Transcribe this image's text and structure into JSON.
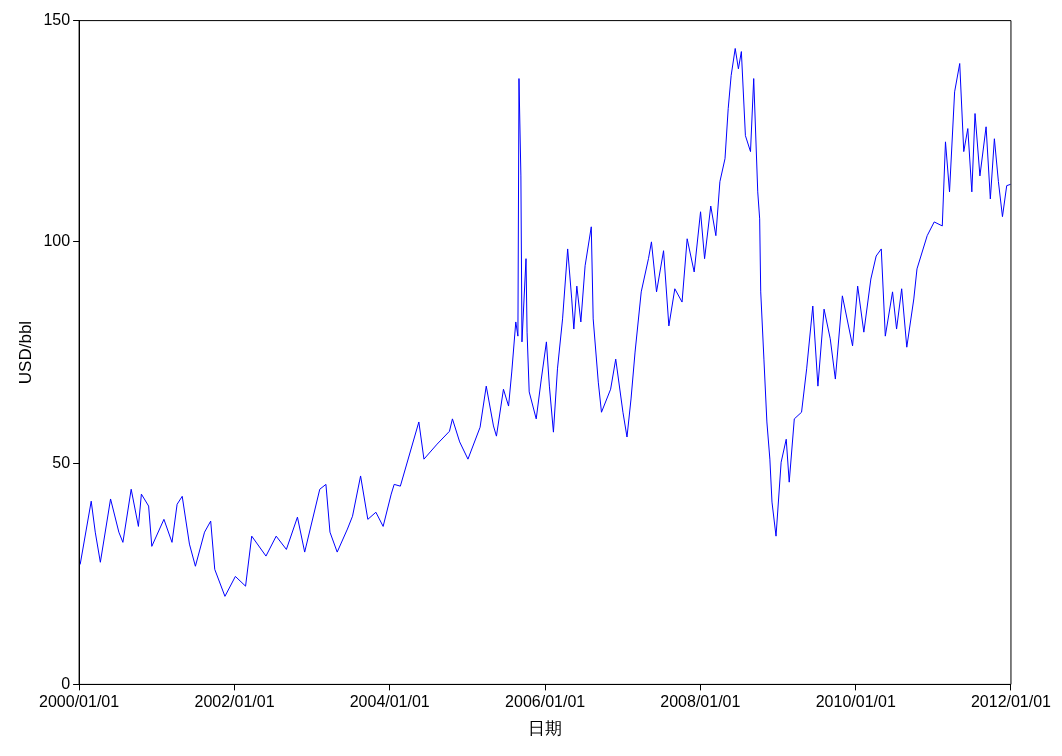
{
  "chart_data": {
    "type": "line",
    "xlabel": "日期",
    "ylabel": "USD/bbl",
    "xlim": [
      "2000-01-01",
      "2012-01-01"
    ],
    "xticks": [
      {
        "value": "2000-01-01",
        "label": "2000/01/01"
      },
      {
        "value": "2002-01-01",
        "label": "2002/01/01"
      },
      {
        "value": "2004-01-01",
        "label": "2004/01/01"
      },
      {
        "value": "2006-01-01",
        "label": "2006/01/01"
      },
      {
        "value": "2008-01-01",
        "label": "2008/01/01"
      },
      {
        "value": "2010-01-01",
        "label": "2010/01/01"
      },
      {
        "value": "2012-01-01",
        "label": "2012/01/01"
      }
    ],
    "ylim": [
      0,
      150
    ],
    "yticks": [
      0,
      50,
      100,
      150
    ],
    "grid": false,
    "legend": false,
    "marker": "none",
    "line_style": "solid",
    "x": [
      "2000-01-06",
      "2000-02-27",
      "2000-03-17",
      "2000-04-10",
      "2000-05-28",
      "2000-07-06",
      "2000-07-25",
      "2000-09-02",
      "2000-10-06",
      "2000-10-20",
      "2000-11-23",
      "2000-12-08",
      "2001-02-03",
      "2001-03-13",
      "2001-04-06",
      "2001-04-30",
      "2001-06-03",
      "2001-07-01",
      "2001-08-13",
      "2001-09-11",
      "2001-09-30",
      "2001-11-17",
      "2002-01-05",
      "2002-02-22",
      "2002-03-23",
      "2002-05-29",
      "2002-07-16",
      "2002-09-02",
      "2002-10-24",
      "2002-11-27",
      "2003-02-06",
      "2003-03-07",
      "2003-03-26",
      "2003-04-29",
      "2003-06-16",
      "2003-07-10",
      "2003-08-17",
      "2003-09-20",
      "2003-10-28",
      "2003-12-01",
      "2004-01-08",
      "2004-01-22",
      "2004-02-20",
      "2004-05-17",
      "2004-06-10",
      "2004-08-11",
      "2004-10-08",
      "2004-10-22",
      "2004-11-25",
      "2005-01-03",
      "2005-03-01",
      "2005-03-30",
      "2005-05-03",
      "2005-05-17",
      "2005-06-19",
      "2005-07-13",
      "2005-07-28",
      "2005-08-16",
      "2005-08-26",
      "2005-08-31",
      "2005-09-09",
      "2005-09-14",
      "2005-10-03",
      "2005-10-08",
      "2005-10-18",
      "2005-11-20",
      "2005-12-14",
      "2006-01-07",
      "2006-01-21",
      "2006-02-09",
      "2006-02-28",
      "2006-03-24",
      "2006-04-17",
      "2006-05-06",
      "2006-05-16",
      "2006-05-30",
      "2006-06-18",
      "2006-07-08",
      "2006-08-06",
      "2006-08-15",
      "2006-09-08",
      "2006-09-23",
      "2006-11-05",
      "2006-11-29",
      "2007-01-02",
      "2007-01-21",
      "2007-02-09",
      "2007-02-28",
      "2007-03-29",
      "2007-05-02",
      "2007-05-16",
      "2007-06-09",
      "2007-07-12",
      "2007-08-06",
      "2007-09-03",
      "2007-10-07",
      "2007-10-31",
      "2007-12-03",
      "2008-01-02",
      "2008-01-21",
      "2008-02-19",
      "2008-03-14",
      "2008-04-02",
      "2008-04-26",
      "2008-05-11",
      "2008-05-25",
      "2008-06-13",
      "2008-06-28",
      "2008-07-12",
      "2008-07-31",
      "2008-08-24",
      "2008-09-08",
      "2008-09-27",
      "2008-10-06",
      "2008-10-11",
      "2008-10-26",
      "2008-11-09",
      "2008-11-23",
      "2008-12-03",
      "2008-12-22",
      "2009-01-15",
      "2009-02-08",
      "2009-02-22",
      "2009-03-18",
      "2009-04-21",
      "2009-05-15",
      "2009-06-13",
      "2009-07-07",
      "2009-08-05",
      "2009-09-03",
      "2009-09-27",
      "2009-10-30",
      "2009-12-17",
      "2010-01-10",
      "2010-02-08",
      "2010-03-13",
      "2010-04-07",
      "2010-05-01",
      "2010-05-20",
      "2010-06-23",
      "2010-07-12",
      "2010-08-05",
      "2010-08-29",
      "2010-10-01",
      "2010-10-16",
      "2010-12-03",
      "2011-01-05",
      "2011-02-12",
      "2011-02-27",
      "2011-03-18",
      "2011-04-11",
      "2011-05-05",
      "2011-05-24",
      "2011-06-12",
      "2011-07-01",
      "2011-07-16",
      "2011-08-08",
      "2011-09-06",
      "2011-09-26",
      "2011-10-15",
      "2011-11-03",
      "2011-11-22",
      "2011-12-12",
      "2011-12-30"
    ],
    "series": [
      {
        "color": "#0000ff",
        "values": [
          27.1,
          41.4,
          34.4,
          27.6,
          41.9,
          34.4,
          32.1,
          44.1,
          35.7,
          43.0,
          40.3,
          31.2,
          37.3,
          32.1,
          40.7,
          42.5,
          31.7,
          26.7,
          34.4,
          36.9,
          26.0,
          19.9,
          24.4,
          22.2,
          33.5,
          29.0,
          33.5,
          30.5,
          37.8,
          29.9,
          44.1,
          45.2,
          34.4,
          29.9,
          35.1,
          38.0,
          47.1,
          37.3,
          38.9,
          35.7,
          43.0,
          45.2,
          44.8,
          59.3,
          50.9,
          54.3,
          57.2,
          60.0,
          54.8,
          50.9,
          58.1,
          67.4,
          58.4,
          56.1,
          66.7,
          62.9,
          70.6,
          81.9,
          78.7,
          136.9,
          114.9,
          77.4,
          96.2,
          79.6,
          66.1,
          60.0,
          69.0,
          77.4,
          67.4,
          57.0,
          71.3,
          82.6,
          98.4,
          87.1,
          80.3,
          90.0,
          81.9,
          94.6,
          103.4,
          82.6,
          68.3,
          61.5,
          66.7,
          73.5,
          61.5,
          55.9,
          64.5,
          75.1,
          88.7,
          96.2,
          100.0,
          88.7,
          98.0,
          81.0,
          89.4,
          86.4,
          100.7,
          93.2,
          106.8,
          96.2,
          108.1,
          101.4,
          113.6,
          118.8,
          130.1,
          137.6,
          143.7,
          139.1,
          143.0,
          124.0,
          120.4,
          136.9,
          111.3,
          105.2,
          88.7,
          73.5,
          59.3,
          50.9,
          41.2,
          33.5,
          50.2,
          55.4,
          45.7,
          60.0,
          61.5,
          71.3,
          85.5,
          67.4,
          84.8,
          78.1,
          69.0,
          87.8,
          76.5,
          90.0,
          79.6,
          91.6,
          96.8,
          98.4,
          78.7,
          88.7,
          80.3,
          89.4,
          76.2,
          87.1,
          93.9,
          101.4,
          104.5,
          103.6,
          122.6,
          111.3,
          133.9,
          140.3,
          120.4,
          125.6,
          111.3,
          129.0,
          114.9,
          126.0,
          109.7,
          123.3,
          113.6,
          105.7,
          112.7,
          113.0
        ]
      }
    ]
  }
}
